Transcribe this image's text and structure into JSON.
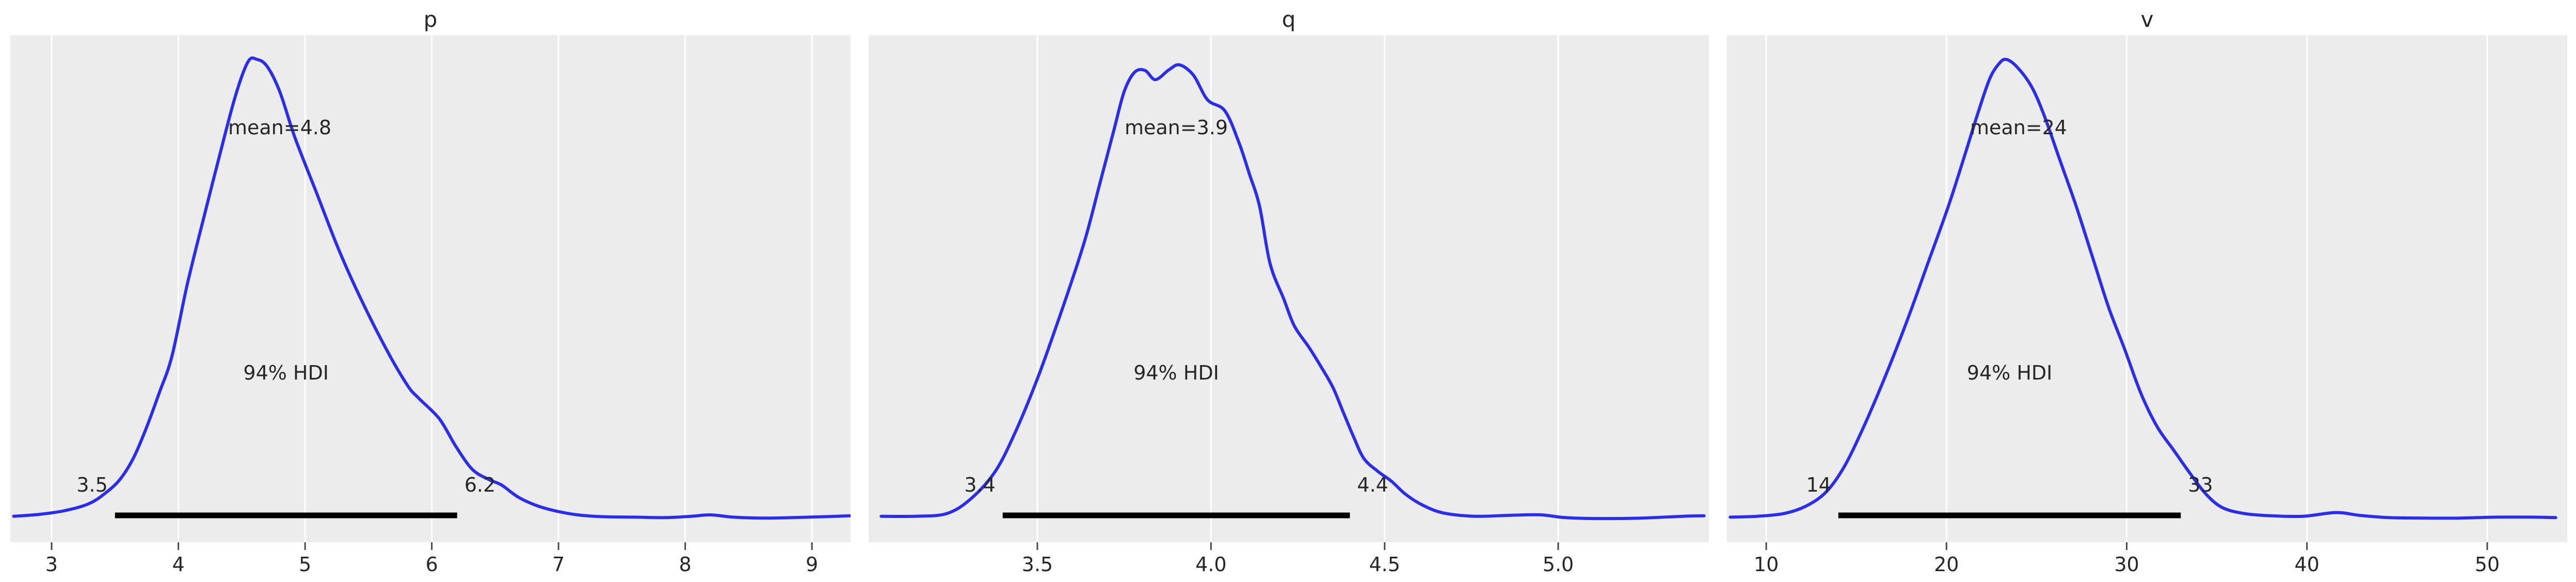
{
  "figure": {
    "background": "#ffffff",
    "panel_background": "#ececec",
    "grid_color": "#ffffff",
    "curve_color": "#2a2eec",
    "hdi_bar_color": "#000000",
    "text_color": "#262626",
    "tick_color": "#4a4a4a"
  },
  "chart_data": {
    "type": "line",
    "subtype": "posterior-kde",
    "legend": "none",
    "grid": "vertical-major-only",
    "panels": [
      {
        "title": "p",
        "mean": {
          "value": 4.8,
          "label": "mean=4.8"
        },
        "hdi": {
          "probability": "94%",
          "text": "94% HDI",
          "lower": 3.5,
          "upper": 6.2,
          "lower_label": "3.5",
          "upper_label": "6.2"
        },
        "x_domain": [
          2.674,
          9.305
        ],
        "x_ticks": [
          {
            "v": 3,
            "label": "3"
          },
          {
            "v": 4,
            "label": "4"
          },
          {
            "v": 5,
            "label": "5"
          },
          {
            "v": 6,
            "label": "6"
          },
          {
            "v": 7,
            "label": "7"
          },
          {
            "v": 8,
            "label": "8"
          },
          {
            "v": 9,
            "label": "9"
          }
        ],
        "density": [
          [
            2.7,
            0.006
          ],
          [
            2.9,
            0.01
          ],
          [
            3.1,
            0.018
          ],
          [
            3.3,
            0.034
          ],
          [
            3.45,
            0.062
          ],
          [
            3.55,
            0.09
          ],
          [
            3.65,
            0.135
          ],
          [
            3.75,
            0.2
          ],
          [
            3.85,
            0.275
          ],
          [
            3.95,
            0.355
          ],
          [
            4.07,
            0.51
          ],
          [
            4.2,
            0.655
          ],
          [
            4.32,
            0.785
          ],
          [
            4.45,
            0.92
          ],
          [
            4.55,
            0.995
          ],
          [
            4.62,
            1.0
          ],
          [
            4.7,
            0.985
          ],
          [
            4.8,
            0.93
          ],
          [
            4.92,
            0.83
          ],
          [
            5.09,
            0.71
          ],
          [
            5.26,
            0.59
          ],
          [
            5.43,
            0.485
          ],
          [
            5.64,
            0.37
          ],
          [
            5.81,
            0.29
          ],
          [
            5.9,
            0.262
          ],
          [
            6.06,
            0.218
          ],
          [
            6.19,
            0.158
          ],
          [
            6.32,
            0.108
          ],
          [
            6.45,
            0.086
          ],
          [
            6.55,
            0.074
          ],
          [
            6.68,
            0.048
          ],
          [
            6.82,
            0.03
          ],
          [
            6.97,
            0.018
          ],
          [
            7.15,
            0.009
          ],
          [
            7.35,
            0.005
          ],
          [
            7.6,
            0.004
          ],
          [
            7.85,
            0.003
          ],
          [
            8.05,
            0.006
          ],
          [
            8.2,
            0.009
          ],
          [
            8.38,
            0.004
          ],
          [
            8.6,
            0.002
          ],
          [
            8.85,
            0.003
          ],
          [
            9.1,
            0.005
          ],
          [
            9.3,
            0.007
          ]
        ]
      },
      {
        "title": "q",
        "mean": {
          "value": 3.9,
          "label": "mean=3.9"
        },
        "hdi": {
          "probability": "94%",
          "text": "94% HDI",
          "lower": 3.4,
          "upper": 4.4,
          "lower_label": "3.4",
          "upper_label": "4.4"
        },
        "x_domain": [
          3.014,
          5.434
        ],
        "x_ticks": [
          {
            "v": 3.5,
            "label": "3.5"
          },
          {
            "v": 4.0,
            "label": "4.0"
          },
          {
            "v": 4.5,
            "label": "4.5"
          },
          {
            "v": 5.0,
            "label": "5.0"
          }
        ],
        "density": [
          [
            3.05,
            0.006
          ],
          [
            3.15,
            0.006
          ],
          [
            3.24,
            0.012
          ],
          [
            3.31,
            0.045
          ],
          [
            3.38,
            0.105
          ],
          [
            3.44,
            0.195
          ],
          [
            3.5,
            0.305
          ],
          [
            3.55,
            0.41
          ],
          [
            3.6,
            0.52
          ],
          [
            3.64,
            0.615
          ],
          [
            3.68,
            0.73
          ],
          [
            3.72,
            0.845
          ],
          [
            3.75,
            0.93
          ],
          [
            3.78,
            0.972
          ],
          [
            3.81,
            0.976
          ],
          [
            3.84,
            0.956
          ],
          [
            3.88,
            0.978
          ],
          [
            3.91,
            0.988
          ],
          [
            3.95,
            0.965
          ],
          [
            3.99,
            0.912
          ],
          [
            4.04,
            0.888
          ],
          [
            4.08,
            0.82
          ],
          [
            4.11,
            0.752
          ],
          [
            4.14,
            0.68
          ],
          [
            4.17,
            0.556
          ],
          [
            4.21,
            0.478
          ],
          [
            4.24,
            0.42
          ],
          [
            4.28,
            0.376
          ],
          [
            4.31,
            0.34
          ],
          [
            4.35,
            0.288
          ],
          [
            4.38,
            0.234
          ],
          [
            4.41,
            0.18
          ],
          [
            4.44,
            0.132
          ],
          [
            4.48,
            0.104
          ],
          [
            4.52,
            0.082
          ],
          [
            4.56,
            0.054
          ],
          [
            4.61,
            0.03
          ],
          [
            4.67,
            0.013
          ],
          [
            4.76,
            0.006
          ],
          [
            4.86,
            0.008
          ],
          [
            4.95,
            0.009
          ],
          [
            5.02,
            0.003
          ],
          [
            5.12,
            0.001
          ],
          [
            5.24,
            0.002
          ],
          [
            5.36,
            0.006
          ],
          [
            5.42,
            0.007
          ]
        ]
      },
      {
        "title": "v",
        "mean": {
          "value": 24,
          "label": "mean=24"
        },
        "hdi": {
          "probability": "94%",
          "text": "94% HDI",
          "lower": 14,
          "upper": 33,
          "lower_label": "14",
          "upper_label": "33"
        },
        "x_domain": [
          7.82,
          54.44
        ],
        "x_ticks": [
          {
            "v": 10,
            "label": "10"
          },
          {
            "v": 20,
            "label": "20"
          },
          {
            "v": 30,
            "label": "30"
          },
          {
            "v": 40,
            "label": "40"
          },
          {
            "v": 50,
            "label": "50"
          }
        ],
        "density": [
          [
            8.0,
            0.004
          ],
          [
            9.5,
            0.006
          ],
          [
            11.0,
            0.012
          ],
          [
            12.2,
            0.028
          ],
          [
            13.3,
            0.058
          ],
          [
            14.3,
            0.112
          ],
          [
            15.4,
            0.2
          ],
          [
            16.6,
            0.31
          ],
          [
            17.8,
            0.43
          ],
          [
            19.0,
            0.56
          ],
          [
            20.1,
            0.68
          ],
          [
            21.0,
            0.79
          ],
          [
            21.8,
            0.89
          ],
          [
            22.4,
            0.958
          ],
          [
            22.9,
            0.99
          ],
          [
            23.3,
            1.0
          ],
          [
            23.9,
            0.984
          ],
          [
            24.7,
            0.942
          ],
          [
            25.4,
            0.88
          ],
          [
            26.3,
            0.78
          ],
          [
            27.2,
            0.68
          ],
          [
            28.1,
            0.57
          ],
          [
            29.0,
            0.46
          ],
          [
            29.9,
            0.368
          ],
          [
            30.8,
            0.272
          ],
          [
            31.7,
            0.2
          ],
          [
            32.6,
            0.15
          ],
          [
            33.5,
            0.1
          ],
          [
            34.4,
            0.054
          ],
          [
            35.3,
            0.025
          ],
          [
            36.5,
            0.012
          ],
          [
            38.0,
            0.007
          ],
          [
            39.8,
            0.006
          ],
          [
            41.6,
            0.014
          ],
          [
            42.9,
            0.008
          ],
          [
            44.5,
            0.003
          ],
          [
            46.5,
            0.002
          ],
          [
            48.5,
            0.002
          ],
          [
            50.5,
            0.004
          ],
          [
            52.5,
            0.004
          ],
          [
            53.8,
            0.003
          ]
        ]
      }
    ]
  }
}
